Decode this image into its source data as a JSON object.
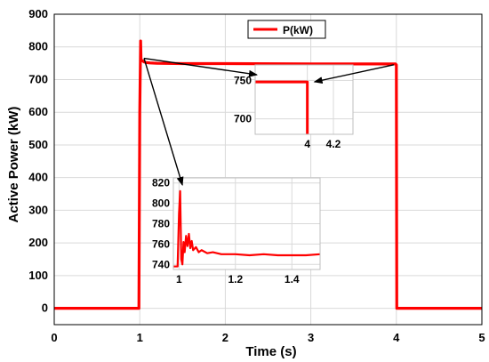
{
  "chart_data": [
    {
      "type": "line",
      "title": "",
      "xlabel": "Time (s)",
      "ylabel": "Active Power (kW)",
      "xlim": [
        0,
        5
      ],
      "ylim": [
        -50,
        900
      ],
      "xticks": [
        0,
        1,
        2,
        3,
        4,
        5
      ],
      "yticks": [
        0,
        100,
        200,
        300,
        400,
        500,
        600,
        700,
        800,
        900
      ],
      "grid": true,
      "legend_position": "top-center",
      "series": [
        {
          "name": "P(kW)",
          "color": "#ff0000",
          "x": [
            0,
            0.99,
            1.0,
            1.01,
            1.015,
            1.03,
            1.05,
            1.08,
            1.12,
            1.2,
            1.5,
            2.0,
            3.0,
            3.99,
            4.0,
            4.005,
            5.0
          ],
          "y": [
            0,
            0,
            600,
            818,
            760,
            758,
            754,
            752,
            751,
            750,
            749,
            749,
            748,
            748,
            745,
            0,
            0
          ]
        }
      ]
    },
    {
      "type": "line",
      "title": "",
      "xlim": [
        3.6,
        4.35
      ],
      "ylim": [
        680,
        770
      ],
      "xticks": [
        4,
        4.2
      ],
      "yticks": [
        700,
        750
      ],
      "grid": true,
      "series": [
        {
          "color": "#ff0000",
          "x": [
            3.6,
            3.995,
            4.0,
            4.0
          ],
          "y": [
            748,
            748,
            748,
            680
          ]
        }
      ]
    },
    {
      "type": "line",
      "title": "",
      "xlim": [
        0.98,
        1.5
      ],
      "ylim": [
        735,
        825
      ],
      "xticks": [
        1,
        1.2,
        1.4
      ],
      "yticks": [
        740,
        760,
        780,
        800,
        820
      ],
      "grid": true,
      "series": [
        {
          "color": "#ff0000",
          "x": [
            0.98,
            0.995,
            1.0,
            1.004,
            1.008,
            1.012,
            1.016,
            1.02,
            1.025,
            1.03,
            1.035,
            1.04,
            1.045,
            1.05,
            1.06,
            1.07,
            1.08,
            1.1,
            1.12,
            1.15,
            1.2,
            1.25,
            1.3,
            1.35,
            1.4,
            1.45,
            1.5
          ],
          "y": [
            738,
            738,
            790,
            812,
            745,
            740,
            762,
            752,
            768,
            758,
            770,
            756,
            763,
            754,
            757,
            752,
            754,
            751,
            752,
            750,
            750,
            749,
            750,
            749,
            749,
            749,
            750
          ]
        }
      ]
    }
  ]
}
